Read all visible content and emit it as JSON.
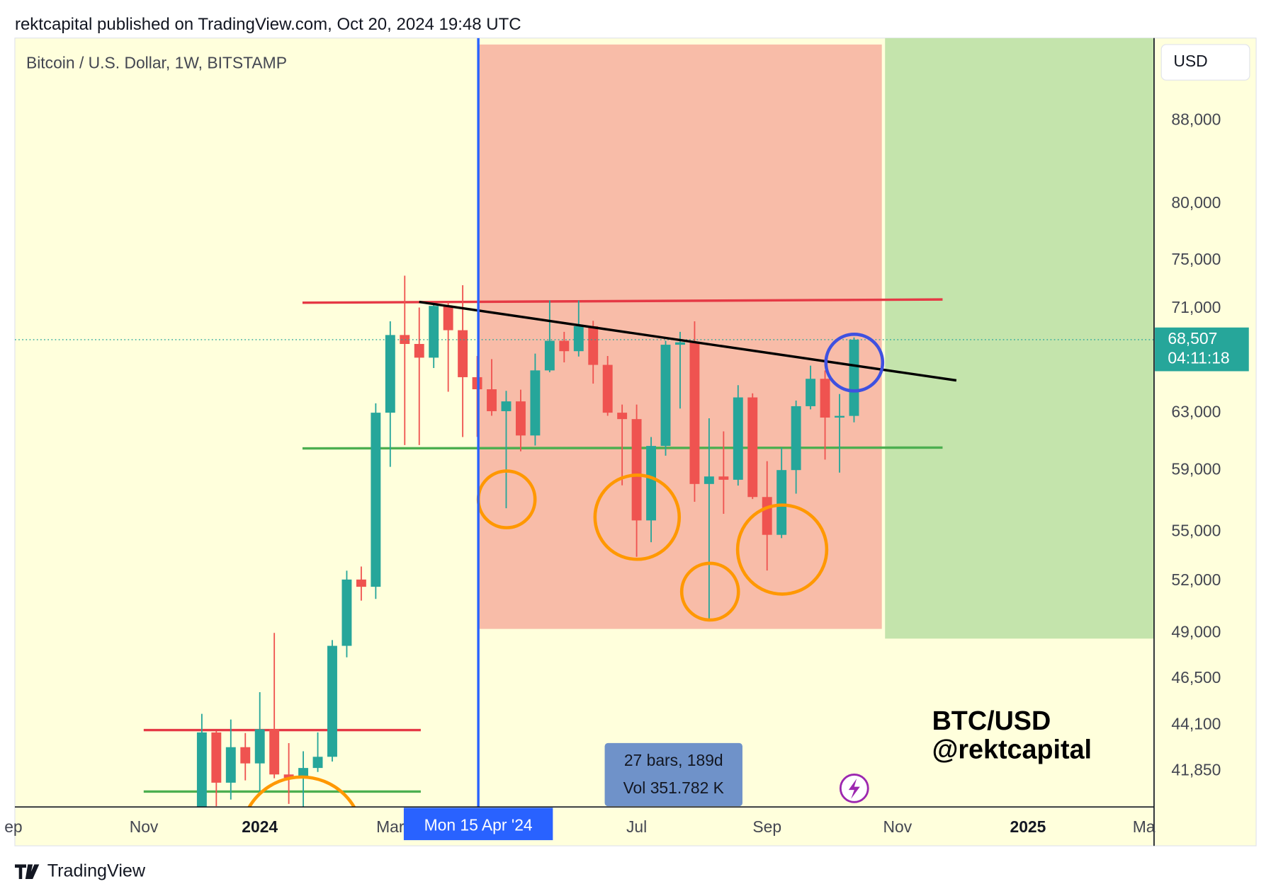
{
  "header": "rektcapital published on TradingView.com, Oct 20, 2024 19:48 UTC",
  "footer_logo": "TradingView",
  "chart_data": {
    "type": "candlestick",
    "title": "Bitcoin / U.S. Dollar, 1W, BITSTAMP",
    "currency": "USD",
    "log_scale": true,
    "grid": false,
    "up_color": "#26a69a",
    "down_color": "#ef5350",
    "categories": [
      null,
      null,
      null,
      null,
      null,
      null,
      null,
      null,
      null,
      null,
      null,
      null,
      null,
      null,
      null,
      null,
      null,
      null,
      null,
      null,
      null,
      null,
      null,
      null,
      null,
      null,
      null,
      null,
      null,
      null,
      null,
      null,
      null,
      null,
      null,
      null,
      null,
      null,
      null,
      null,
      null,
      null,
      null,
      null,
      null,
      null
    ],
    "open": [
      39970,
      43730,
      41290,
      43000,
      42210,
      43890,
      41680,
      41520,
      41990,
      42530,
      48280,
      52080,
      51650,
      63020,
      68870,
      68170,
      67110,
      71200,
      69250,
      65630,
      64730,
      63130,
      63840,
      61400,
      66140,
      68420,
      67610,
      69570,
      66560,
      63020,
      62560,
      55720,
      60670,
      68110,
      68300,
      58090,
      58590,
      58370,
      64130,
      57230,
      54810,
      59020,
      63490,
      65510,
      62670,
      62790
    ],
    "high": [
      44670,
      43800,
      44380,
      43700,
      45790,
      49000,
      43200,
      42800,
      43730,
      48600,
      52610,
      52860,
      63700,
      69960,
      73700,
      71070,
      71460,
      71530,
      72900,
      67240,
      67000,
      64610,
      64700,
      67420,
      71650,
      69120,
      71650,
      70000,
      67240,
      63610,
      63610,
      61290,
      68420,
      69120,
      69960,
      62620,
      61690,
      65030,
      64430,
      59620,
      60560,
      63900,
      66500,
      66140,
      64380,
      68680
    ],
    "low": [
      39700,
      40200,
      40500,
      41400,
      40800,
      41500,
      40300,
      38500,
      41800,
      42300,
      47650,
      50840,
      50940,
      59240,
      60730,
      60730,
      66320,
      64550,
      61290,
      61300,
      62800,
      56500,
      60300,
      60700,
      66000,
      66750,
      67200,
      65150,
      62800,
      58000,
      53450,
      54350,
      60000,
      63320,
      56920,
      49640,
      56140,
      57980,
      57100,
      52620,
      54600,
      57450,
      63260,
      59730,
      58850,
      62330
    ],
    "close": [
      43730,
      41290,
      43000,
      42210,
      43890,
      41680,
      41520,
      41990,
      42530,
      48280,
      52080,
      51650,
      63020,
      68870,
      68170,
      67110,
      71200,
      69250,
      65630,
      64730,
      63130,
      63840,
      61400,
      66140,
      68420,
      67610,
      69570,
      66560,
      63020,
      62560,
      55720,
      60670,
      68110,
      68300,
      58090,
      58590,
      58370,
      64130,
      57230,
      54810,
      59020,
      63490,
      65510,
      62670,
      62790,
      68507
    ],
    "last_price_label": "68,507",
    "countdown": "04:11:18",
    "xlim": [
      -12.9,
      65.7
    ],
    "xticks": [
      {
        "value": -13,
        "label": "ep"
      },
      {
        "value": -4,
        "label": "Nov"
      },
      {
        "value": 4,
        "label": "2024"
      },
      {
        "value": 13,
        "label": "Mar"
      },
      {
        "value": 30,
        "label": "Jul"
      },
      {
        "value": 39,
        "label": "Sep"
      },
      {
        "value": 48,
        "label": "Nov"
      },
      {
        "value": 57,
        "label": "2025"
      },
      {
        "value": 65,
        "label": "Ma"
      }
    ],
    "ylim": [
      40160,
      96700
    ],
    "yticks": [
      {
        "value": 88000,
        "label": "88,000"
      },
      {
        "value": 80000,
        "label": "80,000"
      },
      {
        "value": 75000,
        "label": "75,000"
      },
      {
        "value": 71000,
        "label": "71,000"
      },
      {
        "value": 63000,
        "label": "63,000"
      },
      {
        "value": 59000,
        "label": "59,000"
      },
      {
        "value": 55000,
        "label": "55,000"
      },
      {
        "value": 52000,
        "label": "52,000"
      },
      {
        "value": 49000,
        "label": "49,000"
      },
      {
        "value": 46500,
        "label": "46,500"
      },
      {
        "value": 44100,
        "label": "44,100"
      },
      {
        "value": 41850,
        "label": "41,850"
      }
    ],
    "crosshair_label": "Mon 15 Apr '24",
    "measure": [
      "27 bars, 189d",
      "Vol 351.782 K"
    ],
    "annotation": [
      "BTC/USD",
      "@rektcapital"
    ]
  }
}
